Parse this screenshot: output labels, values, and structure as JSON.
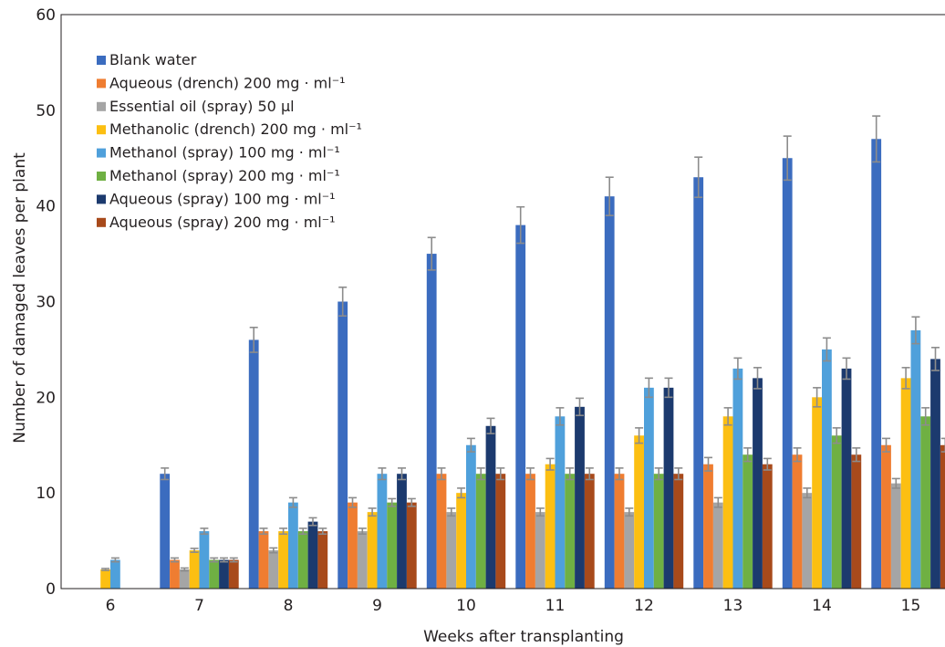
{
  "chart_data": {
    "type": "bar",
    "xlabel": "Weeks after transplanting",
    "ylabel": "Number of damaged leaves per plant",
    "ylim": [
      0,
      60
    ],
    "yticks": [
      "0",
      "10",
      "20",
      "30",
      "40",
      "50",
      "60"
    ],
    "categories": [
      "6",
      "7",
      "8",
      "9",
      "10",
      "11",
      "12",
      "13",
      "14",
      "15"
    ],
    "grid": false,
    "legend_position": "top-left",
    "series": [
      {
        "name": "Blank water",
        "color": "#3b6cbf",
        "values": [
          null,
          12,
          26,
          30,
          35,
          38,
          41,
          43,
          45,
          47
        ],
        "errors": [
          null,
          0.6,
          1.3,
          1.5,
          1.7,
          1.9,
          2.0,
          2.1,
          2.3,
          2.4
        ]
      },
      {
        "name": "Aqueous (drench) 200 mg · ml⁻¹",
        "color": "#ef7d31",
        "values": [
          null,
          3,
          6,
          9,
          12,
          12,
          12,
          13,
          14,
          15
        ],
        "errors": [
          null,
          0.2,
          0.3,
          0.5,
          0.6,
          0.6,
          0.6,
          0.7,
          0.7,
          0.7
        ]
      },
      {
        "name": "Essential oil (spray) 50 µl",
        "color": "#a5a5a5",
        "values": [
          null,
          2,
          4,
          6,
          8,
          8,
          8,
          9,
          10,
          11
        ],
        "errors": [
          null,
          0.15,
          0.25,
          0.3,
          0.4,
          0.4,
          0.4,
          0.5,
          0.5,
          0.5
        ]
      },
      {
        "name": "Methanolic (drench) 200 mg  · ml⁻¹",
        "color": "#fcbf12",
        "values": [
          2,
          4,
          6,
          8,
          10,
          13,
          16,
          18,
          20,
          22
        ],
        "errors": [
          0.1,
          0.2,
          0.3,
          0.4,
          0.5,
          0.6,
          0.8,
          0.9,
          1.0,
          1.1
        ]
      },
      {
        "name": "Methanol (spray) 100 mg · ml⁻¹",
        "color": "#4fa0db",
        "values": [
          3,
          6,
          9,
          12,
          15,
          18,
          21,
          23,
          25,
          27
        ],
        "errors": [
          0.2,
          0.3,
          0.5,
          0.6,
          0.7,
          0.9,
          1.0,
          1.1,
          1.2,
          1.4
        ]
      },
      {
        "name": "Methanol (spray) 200 mg · ml⁻¹",
        "color": "#6fb043",
        "values": [
          null,
          3,
          6,
          9,
          12,
          12,
          12,
          14,
          16,
          18
        ],
        "errors": [
          null,
          0.2,
          0.3,
          0.4,
          0.6,
          0.6,
          0.6,
          0.7,
          0.8,
          0.9
        ]
      },
      {
        "name": "Aqueous (spray) 100 mg  · ml⁻¹",
        "color": "#1c3a6e",
        "values": [
          null,
          3,
          7,
          12,
          17,
          19,
          21,
          22,
          23,
          24
        ],
        "errors": [
          null,
          0.2,
          0.4,
          0.6,
          0.8,
          0.9,
          1.0,
          1.1,
          1.1,
          1.2
        ]
      },
      {
        "name": "Aqueous (spray) 200 mg · ml⁻¹",
        "color": "#a84a1b",
        "values": [
          null,
          3,
          6,
          9,
          12,
          12,
          12,
          13,
          14,
          15
        ],
        "errors": [
          null,
          0.2,
          0.3,
          0.4,
          0.6,
          0.6,
          0.6,
          0.6,
          0.7,
          0.7
        ]
      }
    ]
  }
}
